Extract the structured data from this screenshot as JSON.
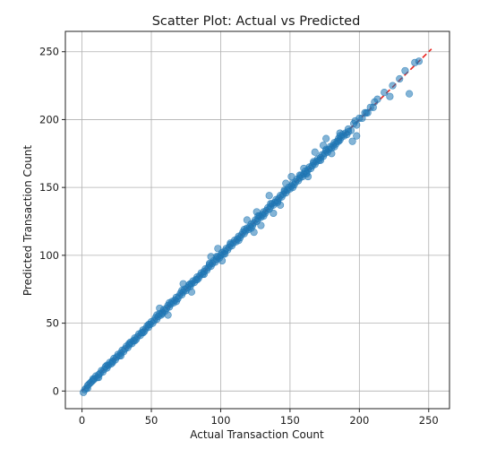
{
  "chart_data": {
    "type": "scatter",
    "title": "Scatter Plot: Actual vs Predicted",
    "xlabel": "Actual Transaction Count",
    "ylabel": "Predicted Transaction Count",
    "xlim": [
      -12,
      265
    ],
    "ylim": [
      -13,
      265
    ],
    "xticks": [
      0,
      50,
      100,
      150,
      200,
      250
    ],
    "yticks": [
      0,
      50,
      100,
      150,
      200,
      250
    ],
    "xtick_labels": [
      "0",
      "50",
      "100",
      "150",
      "200",
      "250"
    ],
    "ytick_labels": [
      "0",
      "50",
      "100",
      "150",
      "200",
      "250"
    ],
    "grid": true,
    "reference_line": {
      "style": "dashed",
      "color": "#e8231e",
      "from": [
        0,
        0
      ],
      "to": [
        252,
        252
      ]
    },
    "series": [
      {
        "color": "#1f77b4",
        "points": [
          [
            1,
            -1
          ],
          [
            2,
            1
          ],
          [
            3,
            2
          ],
          [
            4,
            4
          ],
          [
            5,
            5
          ],
          [
            6,
            6
          ],
          [
            7,
            7
          ],
          [
            8,
            8
          ],
          [
            9,
            9
          ],
          [
            10,
            11
          ],
          [
            11,
            10
          ],
          [
            12,
            12
          ],
          [
            13,
            13
          ],
          [
            14,
            15
          ],
          [
            15,
            14
          ],
          [
            16,
            16
          ],
          [
            17,
            18
          ],
          [
            18,
            17
          ],
          [
            19,
            19
          ],
          [
            20,
            21
          ],
          [
            21,
            20
          ],
          [
            22,
            22
          ],
          [
            23,
            24
          ],
          [
            24,
            23
          ],
          [
            25,
            25
          ],
          [
            26,
            27
          ],
          [
            27,
            26
          ],
          [
            28,
            28
          ],
          [
            29,
            30
          ],
          [
            30,
            29
          ],
          [
            31,
            31
          ],
          [
            32,
            33
          ],
          [
            33,
            32
          ],
          [
            34,
            34
          ],
          [
            35,
            36
          ],
          [
            36,
            35
          ],
          [
            37,
            37
          ],
          [
            38,
            39
          ],
          [
            39,
            38
          ],
          [
            40,
            40
          ],
          [
            41,
            42
          ],
          [
            42,
            41
          ],
          [
            43,
            43
          ],
          [
            44,
            45
          ],
          [
            45,
            44
          ],
          [
            46,
            46
          ],
          [
            47,
            48
          ],
          [
            48,
            47
          ],
          [
            49,
            49
          ],
          [
            50,
            51
          ],
          [
            51,
            50
          ],
          [
            52,
            52
          ],
          [
            53,
            54
          ],
          [
            54,
            53
          ],
          [
            55,
            55
          ],
          [
            56,
            57
          ],
          [
            57,
            56
          ],
          [
            58,
            58
          ],
          [
            59,
            60
          ],
          [
            60,
            59
          ],
          [
            61,
            61
          ],
          [
            62,
            63
          ],
          [
            63,
            62
          ],
          [
            64,
            64
          ],
          [
            65,
            66
          ],
          [
            66,
            65
          ],
          [
            67,
            67
          ],
          [
            68,
            69
          ],
          [
            69,
            68
          ],
          [
            70,
            70
          ],
          [
            71,
            72
          ],
          [
            72,
            71
          ],
          [
            73,
            73
          ],
          [
            74,
            75
          ],
          [
            75,
            74
          ],
          [
            76,
            76
          ],
          [
            77,
            78
          ],
          [
            78,
            77
          ],
          [
            79,
            79
          ],
          [
            80,
            81
          ],
          [
            81,
            80
          ],
          [
            82,
            82
          ],
          [
            83,
            84
          ],
          [
            84,
            83
          ],
          [
            85,
            85
          ],
          [
            86,
            87
          ],
          [
            87,
            86
          ],
          [
            88,
            88
          ],
          [
            89,
            90
          ],
          [
            90,
            89
          ],
          [
            91,
            91
          ],
          [
            92,
            93
          ],
          [
            93,
            92
          ],
          [
            94,
            94
          ],
          [
            95,
            96
          ],
          [
            96,
            95
          ],
          [
            97,
            97
          ],
          [
            98,
            99
          ],
          [
            99,
            98
          ],
          [
            100,
            100
          ],
          [
            101,
            102
          ],
          [
            102,
            101
          ],
          [
            103,
            103
          ],
          [
            104,
            105
          ],
          [
            105,
            104
          ],
          [
            106,
            106
          ],
          [
            107,
            108
          ],
          [
            108,
            107
          ],
          [
            109,
            109
          ],
          [
            110,
            111
          ],
          [
            111,
            110
          ],
          [
            112,
            112
          ],
          [
            113,
            114
          ],
          [
            114,
            113
          ],
          [
            115,
            115
          ],
          [
            116,
            117
          ],
          [
            117,
            116
          ],
          [
            118,
            118
          ],
          [
            119,
            120
          ],
          [
            120,
            119
          ],
          [
            121,
            121
          ],
          [
            122,
            123
          ],
          [
            123,
            122
          ],
          [
            124,
            124
          ],
          [
            125,
            126
          ],
          [
            126,
            125
          ],
          [
            127,
            127
          ],
          [
            128,
            129
          ],
          [
            129,
            128
          ],
          [
            130,
            130
          ],
          [
            131,
            132
          ],
          [
            132,
            131
          ],
          [
            133,
            133
          ],
          [
            134,
            135
          ],
          [
            135,
            134
          ],
          [
            136,
            136
          ],
          [
            137,
            138
          ],
          [
            138,
            137
          ],
          [
            139,
            139
          ],
          [
            140,
            141
          ],
          [
            141,
            140
          ],
          [
            142,
            142
          ],
          [
            143,
            144
          ],
          [
            144,
            143
          ],
          [
            145,
            145
          ],
          [
            146,
            147
          ],
          [
            147,
            146
          ],
          [
            148,
            148
          ],
          [
            149,
            150
          ],
          [
            150,
            149
          ],
          [
            151,
            151
          ],
          [
            152,
            153
          ],
          [
            153,
            152
          ],
          [
            154,
            154
          ],
          [
            155,
            156
          ],
          [
            156,
            155
          ],
          [
            157,
            157
          ],
          [
            158,
            159
          ],
          [
            159,
            158
          ],
          [
            160,
            160
          ],
          [
            161,
            162
          ],
          [
            162,
            161
          ],
          [
            163,
            163
          ],
          [
            164,
            165
          ],
          [
            165,
            164
          ],
          [
            166,
            166
          ],
          [
            167,
            168
          ],
          [
            168,
            167
          ],
          [
            169,
            169
          ],
          [
            170,
            171
          ],
          [
            171,
            170
          ],
          [
            172,
            172
          ],
          [
            173,
            174
          ],
          [
            174,
            173
          ],
          [
            175,
            175
          ],
          [
            176,
            177
          ],
          [
            177,
            176
          ],
          [
            178,
            178
          ],
          [
            179,
            180
          ],
          [
            180,
            179
          ],
          [
            181,
            181
          ],
          [
            182,
            183
          ],
          [
            183,
            182
          ],
          [
            184,
            184
          ],
          [
            185,
            186
          ],
          [
            186,
            185
          ],
          [
            187,
            187
          ],
          [
            188,
            189
          ],
          [
            189,
            188
          ],
          [
            190,
            190
          ],
          [
            192,
            193
          ],
          [
            194,
            192
          ],
          [
            196,
            197
          ],
          [
            198,
            196
          ],
          [
            200,
            201
          ],
          [
            202,
            201
          ],
          [
            204,
            205
          ],
          [
            206,
            205
          ],
          [
            208,
            209
          ],
          [
            210,
            209
          ],
          [
            213,
            215
          ],
          [
            218,
            220
          ],
          [
            224,
            225
          ],
          [
            229,
            230
          ],
          [
            233,
            236
          ],
          [
            236,
            219
          ],
          [
            240,
            242
          ],
          [
            243,
            243
          ],
          [
            4,
            2
          ],
          [
            8,
            9
          ],
          [
            12,
            10
          ],
          [
            18,
            19
          ],
          [
            22,
            21
          ],
          [
            28,
            26
          ],
          [
            34,
            35
          ],
          [
            38,
            37
          ],
          [
            44,
            43
          ],
          [
            48,
            49
          ],
          [
            54,
            56
          ],
          [
            58,
            57
          ],
          [
            63,
            65
          ],
          [
            68,
            66
          ],
          [
            72,
            74
          ],
          [
            78,
            79
          ],
          [
            83,
            82
          ],
          [
            88,
            86
          ],
          [
            92,
            94
          ],
          [
            97,
            99
          ],
          [
            103,
            101
          ],
          [
            107,
            109
          ],
          [
            113,
            111
          ],
          [
            117,
            119
          ],
          [
            122,
            120
          ],
          [
            127,
            129
          ],
          [
            131,
            129
          ],
          [
            136,
            138
          ],
          [
            141,
            139
          ],
          [
            146,
            148
          ],
          [
            152,
            150
          ],
          [
            157,
            159
          ],
          [
            162,
            160
          ],
          [
            167,
            169
          ],
          [
            172,
            170
          ],
          [
            176,
            178
          ],
          [
            182,
            180
          ],
          [
            186,
            188
          ],
          [
            191,
            189
          ],
          [
            197,
            199
          ],
          [
            168,
            176
          ],
          [
            185,
            184
          ],
          [
            186,
            190
          ],
          [
            192,
            191
          ],
          [
            195,
            184
          ],
          [
            198,
            188
          ],
          [
            205,
            205
          ],
          [
            211,
            213
          ],
          [
            222,
            217
          ],
          [
            176,
            186
          ],
          [
            147,
            153
          ],
          [
            151,
            158
          ],
          [
            135,
            144
          ],
          [
            143,
            137
          ],
          [
            126,
            132
          ],
          [
            129,
            122
          ],
          [
            119,
            126
          ],
          [
            98,
            105
          ],
          [
            101,
            96
          ],
          [
            93,
            99
          ],
          [
            73,
            79
          ],
          [
            79,
            73
          ],
          [
            56,
            61
          ],
          [
            62,
            56
          ],
          [
            160,
            164
          ],
          [
            163,
            158
          ],
          [
            180,
            175
          ],
          [
            174,
            181
          ],
          [
            138,
            131
          ],
          [
            124,
            117
          ]
        ]
      }
    ]
  }
}
